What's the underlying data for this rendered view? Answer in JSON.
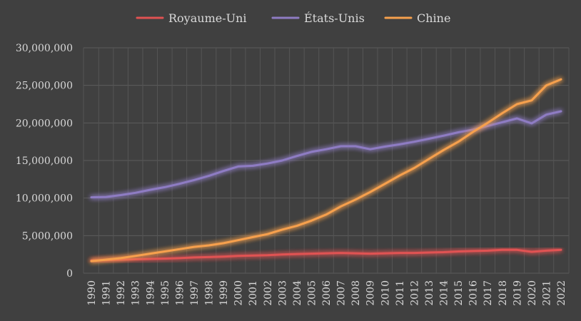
{
  "chart_data": {
    "type": "line",
    "title": "",
    "xlabel": "",
    "ylabel": "",
    "ylim": [
      0,
      30000000
    ],
    "grid": "horizontal and vertical",
    "legend_position": "top",
    "y_ticks": [
      "0",
      "5,000,000",
      "10,000,000",
      "15,000,000",
      "20,000,000",
      "25,000,000",
      "30,000,000"
    ],
    "categories": [
      "1990",
      "1991",
      "1992",
      "1993",
      "1994",
      "1995",
      "1996",
      "1997",
      "1998",
      "1999",
      "2000",
      "2001",
      "2002",
      "2003",
      "2004",
      "2005",
      "2006",
      "2007",
      "2008",
      "2009",
      "2010",
      "2011",
      "2012",
      "2013",
      "2014",
      "2015",
      "2016",
      "2017",
      "2018",
      "2019",
      "2020",
      "2021",
      "2022"
    ],
    "series": [
      {
        "name": "Royaume-Uni",
        "color": "#e05252",
        "values": [
          1700000,
          1750000,
          1800000,
          1850000,
          1900000,
          1950000,
          2000000,
          2100000,
          2150000,
          2200000,
          2300000,
          2350000,
          2400000,
          2500000,
          2550000,
          2600000,
          2650000,
          2700000,
          2650000,
          2600000,
          2650000,
          2700000,
          2700000,
          2750000,
          2800000,
          2900000,
          2950000,
          3000000,
          3100000,
          3100000,
          2850000,
          3000000,
          3100000
        ]
      },
      {
        "name": "États-Unis",
        "color": "#8e7cc3",
        "values": [
          10100000,
          10150000,
          10400000,
          10700000,
          11100000,
          11450000,
          11900000,
          12400000,
          12950000,
          13600000,
          14200000,
          14300000,
          14600000,
          15000000,
          15600000,
          16150000,
          16500000,
          16900000,
          16900000,
          16500000,
          16850000,
          17150000,
          17500000,
          17900000,
          18300000,
          18750000,
          19100000,
          19600000,
          20100000,
          20600000,
          19950000,
          21100000,
          21550000
        ]
      },
      {
        "name": "Chine",
        "color": "#f6a04d",
        "values": [
          1600000,
          1800000,
          2000000,
          2300000,
          2600000,
          2900000,
          3200000,
          3500000,
          3700000,
          4000000,
          4400000,
          4800000,
          5200000,
          5800000,
          6300000,
          7000000,
          7800000,
          8900000,
          9800000,
          10800000,
          11900000,
          13000000,
          14000000,
          15200000,
          16400000,
          17500000,
          18800000,
          20000000,
          21300000,
          22500000,
          23000000,
          25000000,
          25800000
        ]
      }
    ]
  }
}
